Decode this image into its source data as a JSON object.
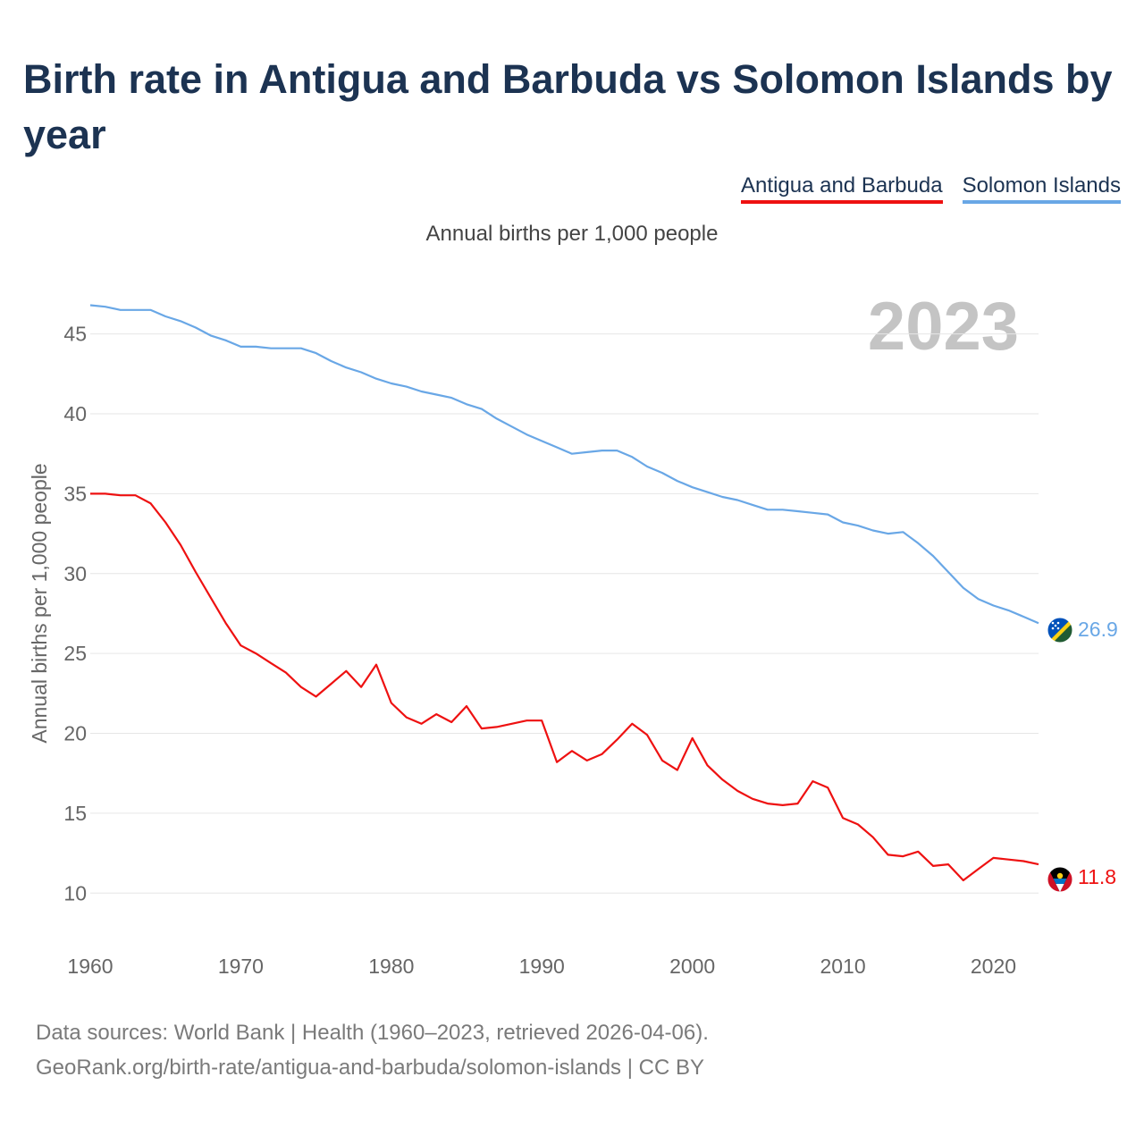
{
  "title": "Birth rate in Antigua and Barbuda vs Solomon Islands by year",
  "subtitle": "Annual births per 1,000 people",
  "year_label": "2023",
  "footer": {
    "line1": "Data sources: World Bank | Health (1960–2023, retrieved 2026-04-06).",
    "line2": "GeoRank.org/birth-rate/antigua-and-barbuda/solomon-islands | CC BY"
  },
  "chart_data": {
    "type": "line",
    "title": "Birth rate in Antigua and Barbuda vs Solomon Islands by year",
    "xlabel": "",
    "ylabel": "Annual births per 1,000 people",
    "xlim": [
      1960,
      2023
    ],
    "ylim": [
      8,
      48
    ],
    "x_ticks": [
      1960,
      1970,
      1980,
      1990,
      2000,
      2010,
      2020
    ],
    "y_ticks": [
      10,
      15,
      20,
      25,
      30,
      35,
      40,
      45
    ],
    "grid": true,
    "legend_position": "top-right",
    "x": [
      1960,
      1961,
      1962,
      1963,
      1964,
      1965,
      1966,
      1967,
      1968,
      1969,
      1970,
      1971,
      1972,
      1973,
      1974,
      1975,
      1976,
      1977,
      1978,
      1979,
      1980,
      1981,
      1982,
      1983,
      1984,
      1985,
      1986,
      1987,
      1988,
      1989,
      1990,
      1991,
      1992,
      1993,
      1994,
      1995,
      1996,
      1997,
      1998,
      1999,
      2000,
      2001,
      2002,
      2003,
      2004,
      2005,
      2006,
      2007,
      2008,
      2009,
      2010,
      2011,
      2012,
      2013,
      2014,
      2015,
      2016,
      2017,
      2018,
      2019,
      2020,
      2021,
      2022,
      2023
    ],
    "series": [
      {
        "name": "Antigua and Barbuda",
        "color": "#ee1111",
        "end_label": "11.8",
        "values": [
          35.0,
          35.0,
          34.9,
          34.9,
          34.4,
          33.2,
          31.8,
          30.1,
          28.5,
          26.9,
          25.5,
          25.0,
          24.4,
          23.8,
          22.9,
          22.3,
          23.1,
          23.9,
          22.9,
          24.3,
          21.9,
          21.0,
          20.6,
          21.2,
          20.7,
          21.7,
          20.3,
          20.4,
          20.6,
          20.8,
          20.8,
          18.2,
          18.9,
          18.3,
          18.7,
          19.6,
          20.6,
          19.9,
          18.3,
          17.7,
          19.7,
          18.0,
          17.1,
          16.4,
          15.9,
          15.6,
          15.5,
          15.6,
          17.0,
          16.6,
          14.7,
          14.3,
          13.5,
          12.4,
          12.3,
          12.6,
          11.7,
          11.8,
          10.8,
          11.5,
          12.2,
          12.1,
          12.0,
          11.8
        ]
      },
      {
        "name": "Solomon Islands",
        "color": "#69a7e6",
        "end_label": "26.9",
        "values": [
          46.8,
          46.7,
          46.5,
          46.5,
          46.5,
          46.1,
          45.8,
          45.4,
          44.9,
          44.6,
          44.2,
          44.2,
          44.1,
          44.1,
          44.1,
          43.8,
          43.3,
          42.9,
          42.6,
          42.2,
          41.9,
          41.7,
          41.4,
          41.2,
          41.0,
          40.6,
          40.3,
          39.7,
          39.2,
          38.7,
          38.3,
          37.9,
          37.5,
          37.6,
          37.7,
          37.7,
          37.3,
          36.7,
          36.3,
          35.8,
          35.4,
          35.1,
          34.8,
          34.6,
          34.3,
          34.0,
          34.0,
          33.9,
          33.8,
          33.7,
          33.2,
          33.0,
          32.7,
          32.5,
          32.6,
          31.9,
          31.1,
          30.1,
          29.1,
          28.4,
          28.0,
          27.7,
          27.3,
          26.9
        ]
      }
    ]
  }
}
